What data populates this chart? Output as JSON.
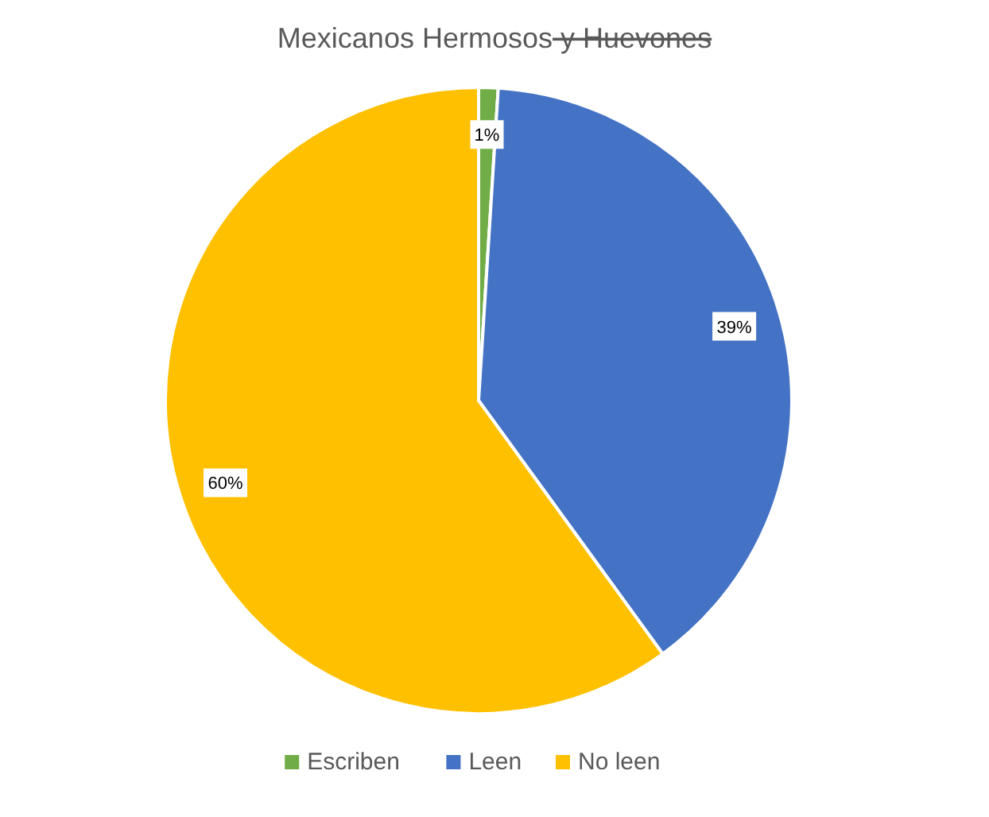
{
  "chart_data": {
    "type": "pie",
    "title": "Mexicanos Hermosos y Huevones",
    "categories": [
      "Escriben",
      "Leen",
      "No leen"
    ],
    "values": [
      1,
      39,
      60
    ],
    "colors": [
      "#70ad47",
      "#4472c4",
      "#ffc000"
    ],
    "value_labels": [
      "1%",
      "39%",
      "60%"
    ],
    "legend": "bottom"
  }
}
